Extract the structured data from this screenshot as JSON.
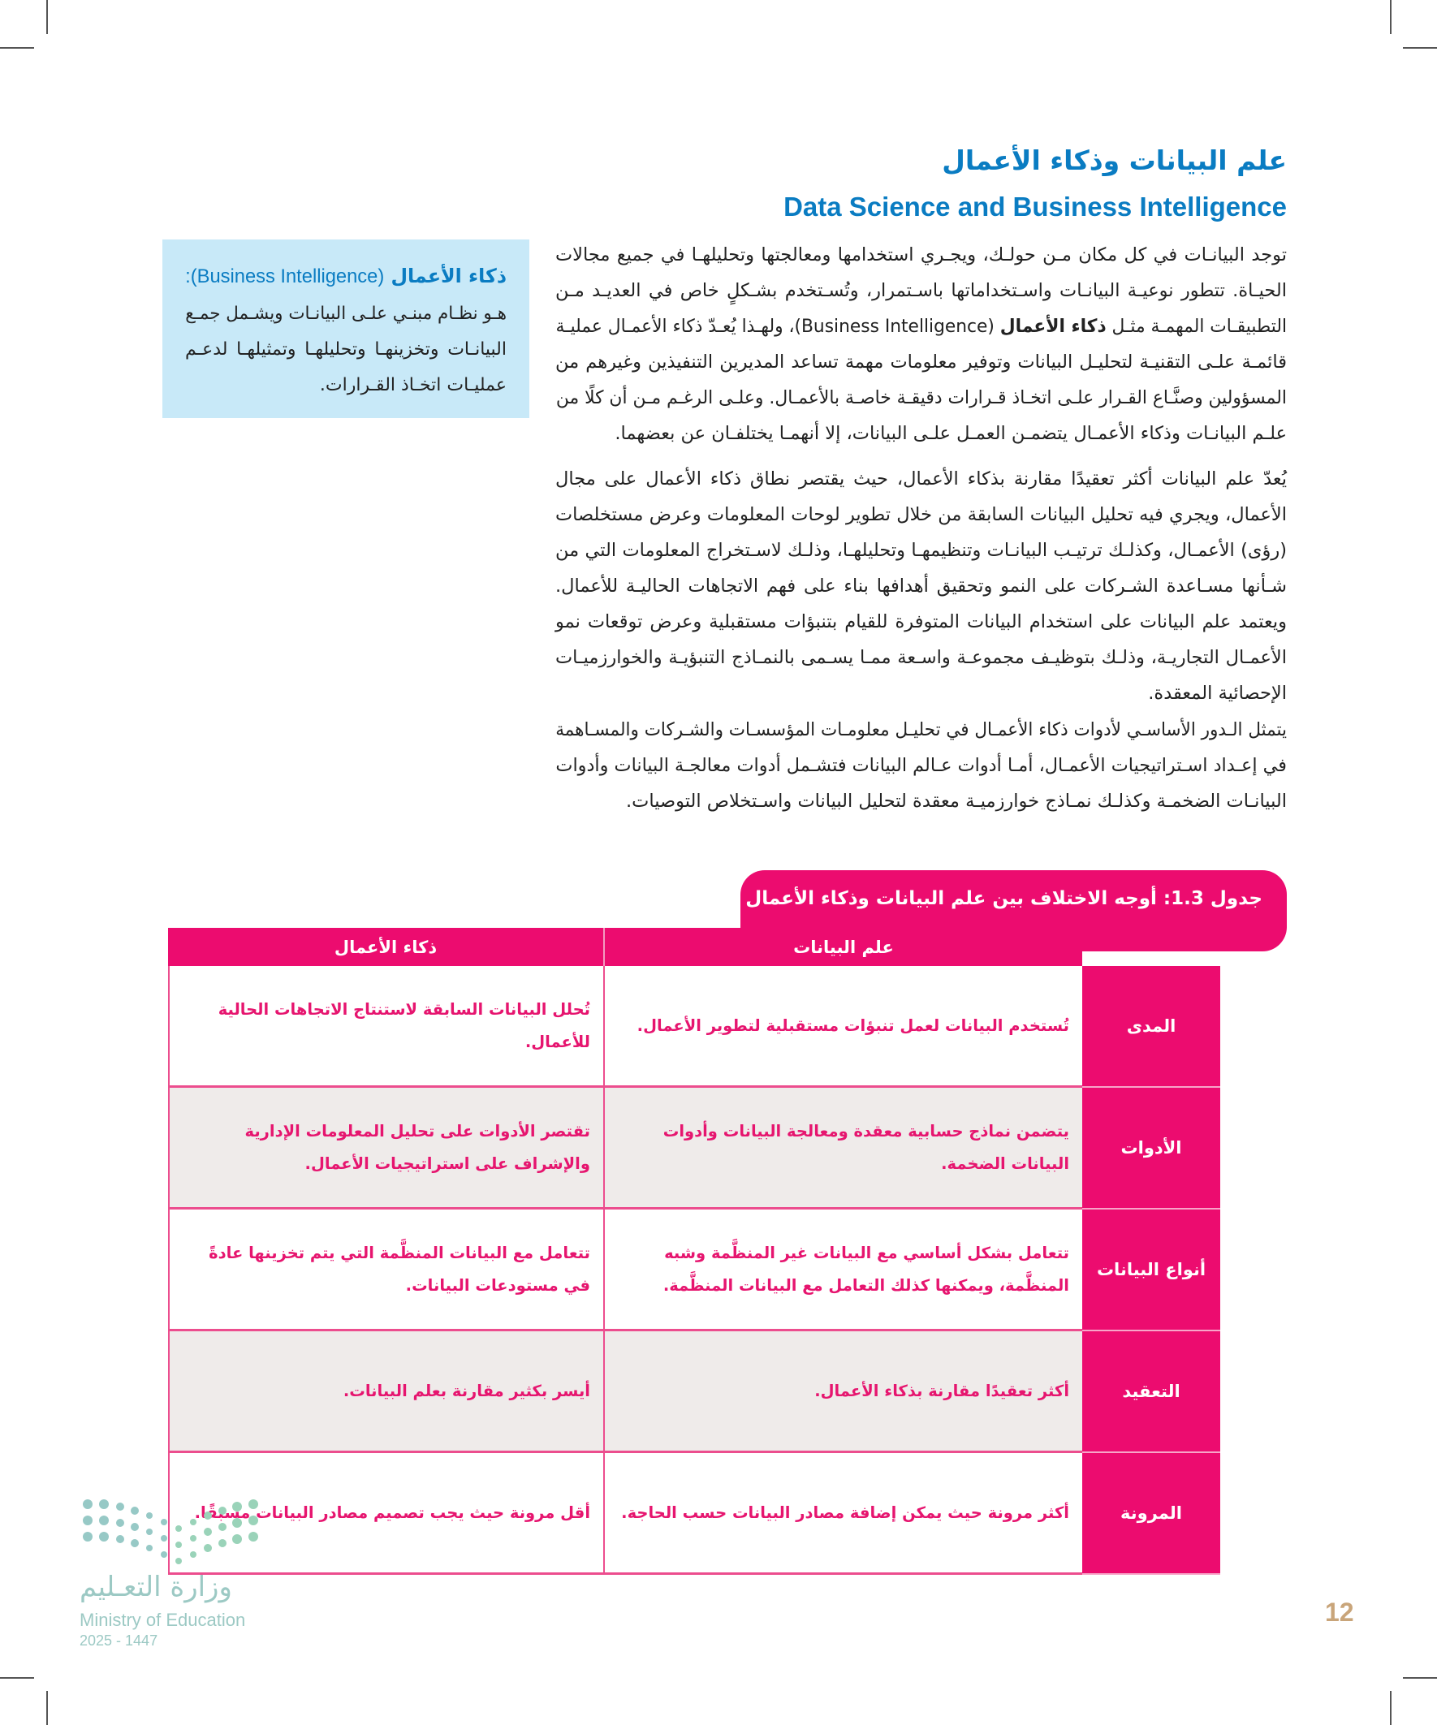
{
  "section": {
    "title_ar": "علم البيانات وذكاء الأعمال",
    "title_en": "Data Science and Business Intelligence"
  },
  "paragraphs": [
    {
      "lines": [
        {
          "parts": [
            "توجد البيانـات في كل مكان مـن حولـك، ويجـري استخدامها ومعالجتها وتحليلهـا في جميع مجالات"
          ]
        },
        {
          "parts": [
            "الحيـاة. تتطور نوعيـة البيانـات واسـتخداماتها باسـتمرار، وتُسـتخدم بشـكلٍ خاص في العديـد مـن"
          ]
        },
        {
          "parts": [
            "التطبيقـات المهمـة مثـل ",
            "ذكاء الأعمال",
            " (Business Intelligence)، ولهـذا يُعـدّ ذكاء الأعمـال عمليـة"
          ]
        },
        {
          "parts": [
            "قائمـة علـى التقنيـة لتحليـل البيانات وتوفير معلومات مهمة تساعد المديرين التنفيذين وغيرهم من"
          ]
        },
        {
          "parts": [
            "المسؤولين وصنَّـاع القـرار علـى اتخـاذ قـرارات دقيقـة خاصـة بالأعمـال. وعلـى الرغـم مـن أن كلًا من"
          ]
        },
        {
          "parts": [
            "علـم البيانـات وذكاء الأعمـال يتضمـن العمـل علـى البيانات، إلا أنهمـا يختلفـان عن بعضهما."
          ]
        }
      ]
    },
    {
      "lines": [
        {
          "parts": [
            "يُعدّ علم البيانات أكثر تعقيدًا مقارنة بذكاء الأعمال، حيث يقتصر نطاق ذكاء الأعمال على مجال"
          ]
        },
        {
          "parts": [
            "الأعمال، ويجري فيه تحليل البيانات السابقة من خلال تطوير لوحات المعلومات وعرض مستخلصات"
          ]
        },
        {
          "parts": [
            "(رؤى) الأعمـال، وكذلـك ترتيـب البيانـات وتنظيمهـا وتحليلهـا، وذلـك لاسـتخراج المعلومات التي من"
          ]
        },
        {
          "parts": [
            "شـأنها مسـاعدة الشـركات على النمو وتحقيق أهدافها بناء على فهم الاتجاهات الحاليـة للأعمال."
          ]
        },
        {
          "parts": [
            "ويعتمد علم البيانات على استخدام البيانات المتوفرة للقيام بتنبؤات مستقبلية وعرض توقعات نمو"
          ]
        },
        {
          "parts": [
            "الأعمـال التجاريـة، وذلـك بتوظيـف مجموعـة واسـعة ممـا يسـمى بالنمـاذج التنبؤيـة والخوارزميـات"
          ]
        },
        {
          "parts": [
            "الإحصائية المعقدة."
          ]
        }
      ]
    },
    {
      "lines": [
        {
          "parts": [
            "يتمثل الـدور الأساسـي لأدوات ذكاء الأعمـال في تحليـل معلومـات المؤسسـات والشـركات والمسـاهمة"
          ]
        },
        {
          "parts": [
            "في إعـداد اسـتراتيجيات الأعمـال، أمـا أدوات عـالم البيانات فتشـمل أدوات معالجـة البيانات وأدوات"
          ]
        },
        {
          "parts": [
            "البيانـات الضخمـة وكذلـك نمـاذج خوارزميـة معقدة لتحليل البيانات واسـتخلاص التوصيات."
          ]
        }
      ]
    }
  ],
  "sidebox": {
    "term_ar": "ذكاء الأعمال",
    "term_en": "(Business Intelligence):",
    "lines": [
      "هـو نظـام مبنـي علـى البيانـات ويشـمل جمـع",
      "البيانـات وتخزينهـا وتحليلهـا وتمثيلهـا لدعـم",
      "عمليـات اتخـاذ القـرارات."
    ]
  },
  "table": {
    "caption": "جدول 1.3: أوجه الاختلاف بين علم البيانات وذكاء الأعمال",
    "columns": [
      "علم البيانات",
      "ذكاء الأعمال"
    ],
    "rows": [
      {
        "label": "المدى",
        "ds": "تُستخدم البيانات لعمل تنبؤات مستقبلية لتطوير الأعمال.",
        "bi": "تُحلل البيانات السابقة لاستنتاج الاتجاهات الحالية للأعمال."
      },
      {
        "label": "الأدوات",
        "ds": "يتضمن نماذج حسابية معقدة ومعالجة البيانات وأدوات البيانات الضخمة.",
        "bi": "تقتصر الأدوات على تحليل المعلومات الإدارية والإشراف على استراتيجيات الأعمال."
      },
      {
        "label": "أنواع البيانات",
        "ds": "تتعامل بشكل أساسي مع البيانات غير المنظَّمة وشبه المنظَّمة، ويمكنها كذلك التعامل مع البيانات المنظَّمة.",
        "bi": "تتعامل مع البيانات المنظَّمة التي يتم تخزينها عادةً في مستودعات البيانات."
      },
      {
        "label": "التعقيد",
        "ds": "أكثر تعقيدًا مقارنة بذكاء الأعمال.",
        "bi": "أيسر بكثير مقارنة بعلم البيانات."
      },
      {
        "label": "المرونة",
        "ds": "أكثر مرونة حيث يمكن إضافة مصادر البيانات حسب الحاجة.",
        "bi": "أقل مرونة حيث يجب تصميم مصادر البيانات مسبقًا."
      }
    ]
  },
  "footer": {
    "logo_ar": "وزارة التعـليم",
    "logo_en": "Ministry of Education",
    "year": "2025 - 1447",
    "page_number": "12"
  },
  "colors": {
    "heading_blue": "#0a7cc2",
    "table_pink": "#ec0c6f",
    "sidebox_bg": "#c8e9f8",
    "alt_row_bg": "#efebea",
    "page_number": "#c9a57a",
    "logo": "#9cc9c4"
  }
}
